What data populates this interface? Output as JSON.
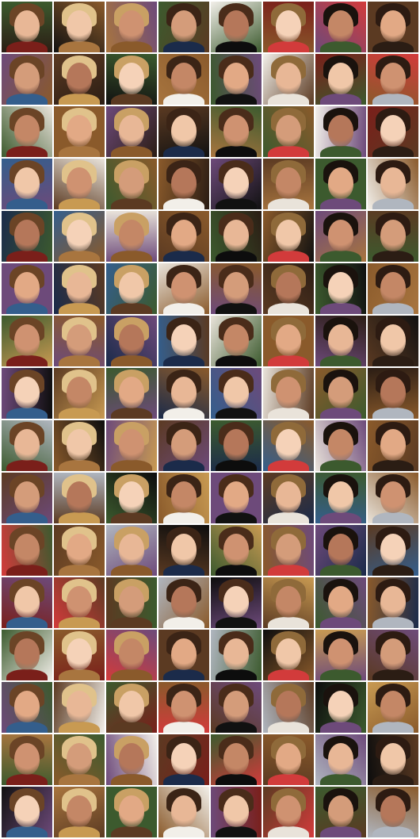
{
  "grid": {
    "rows": 16,
    "cols": 8
  },
  "palette": {
    "backgrounds": [
      "#2b1d14",
      "#5b3a22",
      "#e9e3da",
      "#7a1f1a",
      "#1b2b4a",
      "#3c5a2e",
      "#c89a52",
      "#111111",
      "#b0b6bf",
      "#8a5a2b",
      "#d23b3b",
      "#345e8c",
      "#f2efe9",
      "#6d4a7a",
      "#a8753f",
      "#0d0d0d"
    ],
    "skin": [
      "#e8b796",
      "#d49c7a",
      "#c48766",
      "#f0c7a8",
      "#b5775a",
      "#e2a985",
      "#cf9271",
      "#f5d2b8"
    ],
    "hair": [
      "#1a120d",
      "#3b2416",
      "#6b4426",
      "#8f6a3a",
      "#c9a064",
      "#2d1b12",
      "#4a2c1a",
      "#e0c28b"
    ]
  }
}
